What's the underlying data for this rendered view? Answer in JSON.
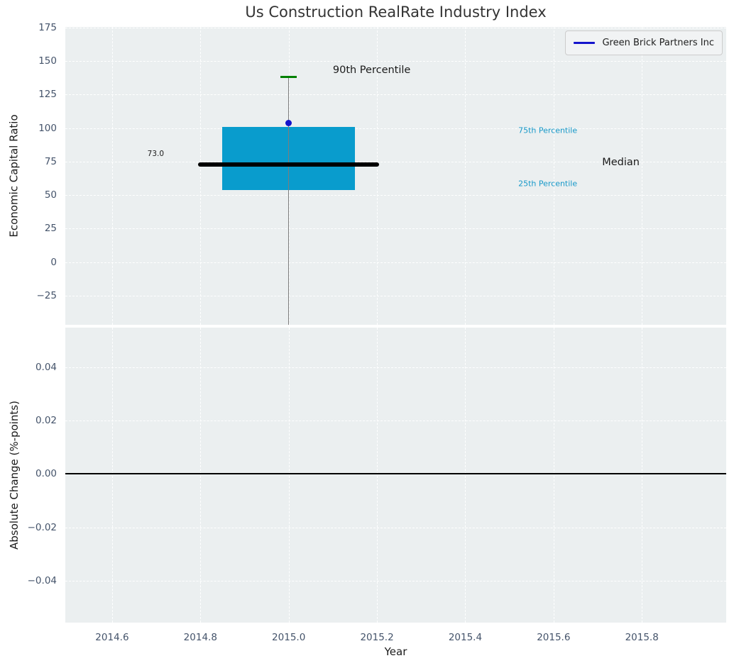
{
  "title": "Us Construction RealRate Industry Index",
  "legend": {
    "label": "Green Brick Partners Inc"
  },
  "colors": {
    "figure_bg": "#ffffff",
    "plot_bg": "#ebeff0",
    "grid": "#ffffff",
    "box_fill": "#099ccd",
    "whisker": "#7d7d7d",
    "cap_green": "#008000",
    "median_black": "#000000",
    "company_blue": "#1414cc",
    "tick_label": "#44536a",
    "dark_text": "#1a1a1a",
    "cyan_text": "#1899c9",
    "zero_line": "#000000",
    "title_color": "#333333"
  },
  "chart_data": [
    {
      "type": "box",
      "name": "economic-capital-ratio-panel",
      "title": "Us Construction RealRate Industry Index",
      "ylabel": "Economic Capital Ratio",
      "xlabel": "",
      "xlim": [
        2014.494,
        2015.991
      ],
      "ylim": [
        -46.8,
        175.5
      ],
      "grid": true,
      "legend_position": "upper right",
      "yticks": [
        {
          "v": 175,
          "label": "175"
        },
        {
          "v": 150,
          "label": "150"
        },
        {
          "v": 125,
          "label": "125"
        },
        {
          "v": 100,
          "label": "100"
        },
        {
          "v": 75,
          "label": "75"
        },
        {
          "v": 50,
          "label": "50"
        },
        {
          "v": 25,
          "label": "25"
        },
        {
          "v": 0,
          "label": "0"
        },
        {
          "v": -25,
          "label": "−25"
        }
      ],
      "xticks": [
        {
          "v": 2014.6,
          "label": "2014.6"
        },
        {
          "v": 2014.8,
          "label": "2014.8"
        },
        {
          "v": 2015.0,
          "label": "2015.0"
        },
        {
          "v": 2015.2,
          "label": "2015.2"
        },
        {
          "v": 2015.4,
          "label": "2015.4"
        },
        {
          "v": 2015.6,
          "label": "2015.6"
        },
        {
          "v": 2015.8,
          "label": "2015.8"
        }
      ],
      "box": {
        "center_x": 2015.0,
        "box_width": 0.3,
        "p25": 54,
        "median": 73.0,
        "p75": 101,
        "p90": 138,
        "p10_below_axis": true,
        "median_line_span": 0.4,
        "cap_span": 0.037
      },
      "company_point": {
        "name": "Green Brick Partners Inc",
        "x": 2015.0,
        "y": 104
      },
      "annotations": [
        {
          "text": "90th Percentile",
          "x": 2015.1,
          "y": 143,
          "color": "dark",
          "size": 14.5
        },
        {
          "text": "73.0",
          "x": 2014.68,
          "y": 81,
          "color": "dark",
          "size": 10.5
        },
        {
          "text": "75th Percentile",
          "x": 2015.52,
          "y": 98,
          "color": "cyan",
          "size": 11
        },
        {
          "text": "Median",
          "x": 2015.71,
          "y": 74.5,
          "color": "dark",
          "size": 14.5
        },
        {
          "text": "25th Percentile",
          "x": 2015.52,
          "y": 58.5,
          "color": "cyan",
          "size": 11
        }
      ]
    },
    {
      "type": "line",
      "name": "absolute-change-panel",
      "ylabel": "Absolute Change (%-points)",
      "xlabel": "Year",
      "xlim": [
        2014.494,
        2015.991
      ],
      "ylim": [
        -0.0557,
        0.0549
      ],
      "grid": true,
      "zero_line": 0.0,
      "yticks": [
        {
          "v": 0.04,
          "label": "0.04"
        },
        {
          "v": 0.02,
          "label": "0.02"
        },
        {
          "v": 0.0,
          "label": "0.00"
        },
        {
          "v": -0.02,
          "label": "−0.02"
        },
        {
          "v": -0.04,
          "label": "−0.04"
        }
      ],
      "xticks": [
        {
          "v": 2014.6,
          "label": "2014.6"
        },
        {
          "v": 2014.8,
          "label": "2014.8"
        },
        {
          "v": 2015.0,
          "label": "2015.0"
        },
        {
          "v": 2015.2,
          "label": "2015.2"
        },
        {
          "v": 2015.4,
          "label": "2015.4"
        },
        {
          "v": 2015.6,
          "label": "2015.6"
        },
        {
          "v": 2015.8,
          "label": "2015.8"
        }
      ]
    }
  ]
}
